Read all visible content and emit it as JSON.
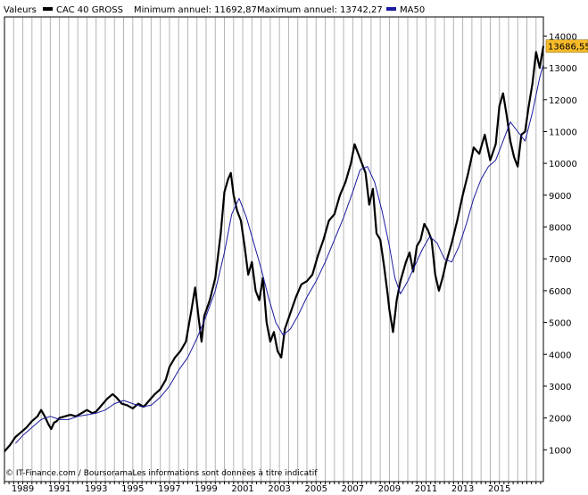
{
  "header": {
    "valeurs_label": "Valeurs",
    "series_label": "CAC 40 GROSS",
    "min_label": "Minimum annuel: 11692,87",
    "max_label": "Maximum annuel: 13742,27",
    "ma_label": "MA50"
  },
  "footer": {
    "credit": "© IT-Finance.com / BoursoramaLes informations sont données à titre indicatif"
  },
  "colors": {
    "price": "#000000",
    "ma": "#1a1aa0",
    "grid": "#b4b4b4",
    "last_badge": "#f7bb2a",
    "frame": "#000000"
  },
  "chart_data": {
    "type": "line",
    "title": "",
    "xlabel": "",
    "ylabel": "",
    "xlim": [
      1988.0,
      2017.4
    ],
    "ylim": [
      0,
      14600
    ],
    "y_ticks": [
      1000,
      2000,
      3000,
      4000,
      5000,
      6000,
      7000,
      8000,
      9000,
      10000,
      11000,
      12000,
      13000,
      14000
    ],
    "x_tick_labels": [
      "1989",
      "1991",
      "1993",
      "1995",
      "1997",
      "1999",
      "2001",
      "2003",
      "2005",
      "2007",
      "2009",
      "2011",
      "2013",
      "2015"
    ],
    "x_tick_years": [
      1989,
      1991,
      1993,
      1995,
      1997,
      1999,
      2001,
      2003,
      2005,
      2007,
      2009,
      2011,
      2013,
      2015
    ],
    "grid": "vertical",
    "legend": "top",
    "last_value_label": "13686,55",
    "last_value": 13686.55,
    "series": [
      {
        "name": "CAC 40 GROSS",
        "color": "#000000",
        "x": [
          1988.0,
          1988.3,
          1988.6,
          1988.9,
          1989.2,
          1989.5,
          1989.8,
          1990.0,
          1990.2,
          1990.4,
          1990.55,
          1990.7,
          1990.85,
          1991.0,
          1991.3,
          1991.6,
          1991.9,
          1992.2,
          1992.5,
          1992.8,
          1993.0,
          1993.3,
          1993.6,
          1993.9,
          1994.1,
          1994.4,
          1994.7,
          1995.0,
          1995.3,
          1995.6,
          1995.9,
          1996.2,
          1996.5,
          1996.8,
          1997.0,
          1997.3,
          1997.6,
          1997.9,
          1998.2,
          1998.4,
          1998.6,
          1998.75,
          1998.9,
          1999.2,
          1999.5,
          1999.8,
          2000.0,
          2000.2,
          2000.35,
          2000.5,
          2000.7,
          2000.9,
          2001.1,
          2001.3,
          2001.5,
          2001.7,
          2001.9,
          2002.1,
          2002.3,
          2002.5,
          2002.7,
          2002.9,
          2003.1,
          2003.3,
          2003.6,
          2003.9,
          2004.2,
          2004.5,
          2004.8,
          2005.1,
          2005.4,
          2005.7,
          2006.0,
          2006.3,
          2006.6,
          2006.9,
          2007.1,
          2007.3,
          2007.5,
          2007.7,
          2007.9,
          2008.1,
          2008.3,
          2008.5,
          2008.7,
          2008.9,
          2009.0,
          2009.2,
          2009.4,
          2009.6,
          2009.9,
          2010.1,
          2010.3,
          2010.5,
          2010.7,
          2010.9,
          2011.1,
          2011.3,
          2011.5,
          2011.7,
          2011.9,
          2012.1,
          2012.4,
          2012.7,
          2013.0,
          2013.3,
          2013.6,
          2013.9,
          2014.2,
          2014.5,
          2014.8,
          2015.0,
          2015.2,
          2015.4,
          2015.6,
          2015.8,
          2016.0,
          2016.2,
          2016.4,
          2016.6,
          2016.8,
          2017.0,
          2017.2,
          2017.4
        ],
        "values": [
          950,
          1150,
          1400,
          1550,
          1700,
          1900,
          2050,
          2250,
          2050,
          1800,
          1650,
          1850,
          1900,
          2000,
          2050,
          2100,
          2050,
          2150,
          2250,
          2150,
          2200,
          2400,
          2600,
          2750,
          2650,
          2450,
          2400,
          2300,
          2450,
          2350,
          2550,
          2750,
          2900,
          3200,
          3600,
          3900,
          4100,
          4400,
          5400,
          6100,
          5100,
          4400,
          5200,
          5700,
          6400,
          7800,
          9100,
          9500,
          9700,
          9000,
          8500,
          8200,
          7400,
          6500,
          6900,
          6000,
          5700,
          6400,
          5000,
          4400,
          4700,
          4100,
          3900,
          4800,
          5300,
          5800,
          6200,
          6300,
          6500,
          7100,
          7600,
          8200,
          8400,
          9000,
          9400,
          10000,
          10600,
          10300,
          10000,
          9700,
          8700,
          9200,
          7800,
          7600,
          6800,
          5900,
          5400,
          4700,
          5700,
          6300,
          6900,
          7200,
          6600,
          7400,
          7600,
          8100,
          7900,
          7600,
          6500,
          6000,
          6400,
          6900,
          7500,
          8200,
          9000,
          9700,
          10500,
          10300,
          10900,
          10100,
          10600,
          11800,
          12200,
          11500,
          10700,
          10200,
          9900,
          10900,
          11000,
          11800,
          12500,
          13500,
          13000,
          13686.55
        ]
      },
      {
        "name": "MA50",
        "color": "#1a1aa0",
        "x": [
          1988.6,
          1989.0,
          1989.5,
          1990.0,
          1990.5,
          1991.0,
          1991.5,
          1992.0,
          1992.5,
          1993.0,
          1993.5,
          1994.0,
          1994.5,
          1995.0,
          1995.5,
          1996.0,
          1996.5,
          1997.0,
          1997.5,
          1998.0,
          1998.5,
          1999.0,
          1999.5,
          2000.0,
          2000.4,
          2000.8,
          2001.2,
          2001.6,
          2002.0,
          2002.4,
          2002.8,
          2003.2,
          2003.6,
          2004.0,
          2004.5,
          2005.0,
          2005.5,
          2006.0,
          2006.5,
          2007.0,
          2007.4,
          2007.8,
          2008.2,
          2008.6,
          2009.0,
          2009.3,
          2009.6,
          2010.0,
          2010.4,
          2010.8,
          2011.2,
          2011.6,
          2012.0,
          2012.4,
          2012.8,
          2013.2,
          2013.6,
          2014.0,
          2014.4,
          2014.8,
          2015.2,
          2015.6,
          2016.0,
          2016.4,
          2016.8,
          2017.2,
          2017.4
        ],
        "values": [
          1200,
          1450,
          1700,
          1950,
          2050,
          1950,
          1950,
          2050,
          2100,
          2150,
          2250,
          2450,
          2550,
          2450,
          2350,
          2400,
          2650,
          3000,
          3500,
          3900,
          4500,
          5200,
          6000,
          7200,
          8400,
          8900,
          8300,
          7500,
          6700,
          5800,
          5000,
          4600,
          4800,
          5200,
          5800,
          6300,
          6900,
          7600,
          8300,
          9100,
          9800,
          9900,
          9400,
          8500,
          7400,
          6400,
          5900,
          6300,
          6800,
          7300,
          7700,
          7500,
          7000,
          6900,
          7400,
          8100,
          8900,
          9500,
          9900,
          10100,
          10700,
          11300,
          11000,
          10700,
          11600,
          12700,
          13100
        ]
      }
    ]
  }
}
